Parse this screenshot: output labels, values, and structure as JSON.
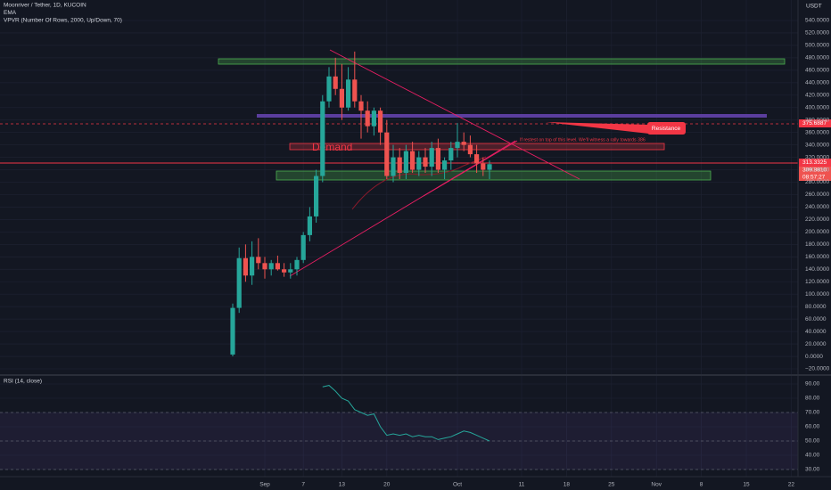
{
  "header": {
    "title": "Moonriver / Tether, 1D, KUCOIN",
    "ema": "EMA",
    "vpvr": "VPVR (Number Of Rows, 2000, Up/Down, 70)",
    "currency": "USDT"
  },
  "chart_data": [
    {
      "type": "candlestick",
      "up_color": "#26a69a",
      "down_color": "#ef5350",
      "categories": [
        null,
        null,
        null,
        null,
        null,
        "Sep",
        null,
        null,
        null,
        null,
        null,
        "7",
        null,
        null,
        null,
        null,
        null,
        "13",
        null,
        null,
        null,
        null,
        null,
        null,
        "20",
        null,
        null,
        null,
        null,
        null,
        null,
        null,
        null,
        null,
        null,
        "Oct",
        null,
        null,
        null,
        null,
        null,
        null,
        null,
        null,
        null,
        "11",
        null,
        null,
        null,
        null,
        null,
        null,
        "18",
        null,
        null,
        null,
        null,
        null,
        null,
        "25",
        null,
        null,
        null,
        null,
        null,
        null,
        "Nov",
        null,
        null,
        null,
        null,
        null,
        null,
        "8",
        null,
        null,
        null,
        null,
        null,
        null,
        "15",
        null,
        null,
        null,
        null,
        null,
        null,
        "22"
      ],
      "open": [
        3,
        78,
        158,
        130,
        160,
        150,
        140,
        150,
        140,
        135,
        140,
        155,
        195,
        225,
        290,
        410,
        450,
        430,
        400,
        445,
        410,
        395,
        370,
        395,
        360,
        290,
        320,
        295,
        330,
        300,
        320,
        305,
        335,
        300,
        315,
        335,
        345,
        340,
        325,
        310,
        300,
        null,
        null,
        null,
        null,
        null,
        null,
        null,
        null,
        null,
        null,
        null,
        null,
        null,
        null,
        null,
        null,
        null,
        null,
        null,
        null,
        null,
        null,
        null,
        null,
        null,
        null,
        null,
        null,
        null,
        null,
        null,
        null,
        null,
        null,
        null,
        null,
        null,
        null,
        null,
        null,
        null,
        null,
        null,
        null,
        null,
        null,
        null
      ],
      "high": [
        85,
        175,
        180,
        185,
        190,
        160,
        155,
        162,
        150,
        150,
        160,
        200,
        240,
        300,
        420,
        465,
        480,
        470,
        465,
        490,
        420,
        410,
        400,
        400,
        380,
        340,
        335,
        340,
        345,
        330,
        335,
        345,
        350,
        320,
        345,
        375,
        360,
        355,
        340,
        320,
        315,
        null,
        null,
        null,
        null,
        null,
        null,
        null,
        null,
        null,
        null,
        null,
        null,
        null,
        null,
        null,
        null,
        null,
        null,
        null,
        null,
        null,
        null,
        null,
        null,
        null,
        null,
        null,
        null,
        null,
        null,
        null,
        null,
        null,
        null,
        null,
        null,
        null,
        null,
        null,
        null,
        null,
        null,
        null,
        null,
        null,
        null,
        null
      ],
      "low": [
        0,
        70,
        120,
        115,
        140,
        125,
        130,
        138,
        128,
        125,
        130,
        150,
        185,
        215,
        280,
        400,
        420,
        380,
        395,
        400,
        350,
        360,
        355,
        340,
        285,
        280,
        285,
        285,
        295,
        290,
        295,
        290,
        295,
        285,
        300,
        320,
        330,
        320,
        295,
        290,
        285,
        null,
        null,
        null,
        null,
        null,
        null,
        null,
        null,
        null,
        null,
        null,
        null,
        null,
        null,
        null,
        null,
        null,
        null,
        null,
        null,
        null,
        null,
        null,
        null,
        null,
        null,
        null,
        null,
        null,
        null,
        null,
        null,
        null,
        null,
        null,
        null,
        null,
        null,
        null,
        null,
        null,
        null,
        null,
        null,
        null,
        null,
        null
      ],
      "close": [
        78,
        158,
        130,
        160,
        150,
        140,
        150,
        140,
        135,
        140,
        155,
        195,
        225,
        290,
        410,
        450,
        430,
        400,
        445,
        410,
        395,
        370,
        395,
        360,
        290,
        320,
        295,
        330,
        300,
        320,
        305,
        335,
        300,
        315,
        335,
        345,
        340,
        325,
        310,
        300,
        309,
        null,
        null,
        null,
        null,
        null,
        null,
        null,
        null,
        null,
        null,
        null,
        null,
        null,
        null,
        null,
        null,
        null,
        null,
        null,
        null,
        null,
        null,
        null,
        null,
        null,
        null,
        null,
        null,
        null,
        null,
        null,
        null,
        null,
        null,
        null,
        null,
        null,
        null,
        null,
        null,
        null,
        null,
        null,
        null,
        null,
        null,
        null
      ],
      "ylim": [
        -30,
        560
      ],
      "yticks": [
        {
          "value": -20,
          "label": "−20.0000"
        },
        {
          "value": 0,
          "label": "0.0000"
        },
        {
          "value": 20,
          "label": "20.0000"
        },
        {
          "value": 40,
          "label": "40.0000"
        },
        {
          "value": 60,
          "label": "60.0000"
        },
        {
          "value": 80,
          "label": "80.0000"
        },
        {
          "value": 100,
          "label": "100.0000"
        },
        {
          "value": 120,
          "label": "120.0000"
        },
        {
          "value": 140,
          "label": "140.0000"
        },
        {
          "value": 160,
          "label": "160.0000"
        },
        {
          "value": 180,
          "label": "180.0000"
        },
        {
          "value": 200,
          "label": "200.0000"
        },
        {
          "value": 220,
          "label": "220.0000"
        },
        {
          "value": 240,
          "label": "240.0000"
        },
        {
          "value": 260,
          "label": "260.0000"
        },
        {
          "value": 280,
          "label": "280.0000"
        },
        {
          "value": 300,
          "label": "300.0000"
        },
        {
          "value": 320,
          "label": "320.0000"
        },
        {
          "value": 340,
          "label": "340.0000"
        },
        {
          "value": 360,
          "label": "360.0000"
        },
        {
          "value": 380,
          "label": "380.0000"
        },
        {
          "value": 400,
          "label": "400.0000"
        },
        {
          "value": 420,
          "label": "420.0000"
        },
        {
          "value": 440,
          "label": "440.0000"
        },
        {
          "value": 460,
          "label": "460.0000"
        },
        {
          "value": 480,
          "label": "480.0000"
        },
        {
          "value": 500,
          "label": "500.0000"
        },
        {
          "value": 520,
          "label": "520.0000"
        },
        {
          "value": 540,
          "label": "540.0000"
        }
      ],
      "grid": true,
      "annotations": {
        "demand": "Demand",
        "resistance": "Resistance",
        "note": "If restest on top of this level. We'll witness a rally towards 386"
      },
      "price_tags": {
        "resistance": "375.6887",
        "line": "313.3325",
        "last": "309.8810",
        "countdown": "08:57:27"
      }
    },
    {
      "type": "line",
      "title": "RSI (14, close)",
      "color": "#26a69a",
      "values": [
        null,
        null,
        null,
        null,
        null,
        null,
        null,
        null,
        null,
        null,
        null,
        null,
        null,
        null,
        88,
        89,
        85,
        80,
        78,
        72,
        70,
        68,
        69,
        60,
        54,
        55,
        54,
        55,
        53,
        54,
        53,
        53,
        51,
        52,
        53,
        55,
        57,
        56,
        54,
        52,
        50,
        null,
        null,
        null,
        null,
        null,
        null,
        null,
        null,
        null,
        null,
        null,
        null,
        null,
        null,
        null,
        null,
        null,
        null,
        null,
        null,
        null,
        null,
        null,
        null,
        null,
        null,
        null,
        null,
        null,
        null,
        null,
        null,
        null,
        null,
        null,
        null,
        null,
        null,
        null,
        null,
        null,
        null,
        null,
        null,
        null,
        null,
        null
      ],
      "ylim": [
        25,
        95
      ],
      "yticks": [
        {
          "value": 30,
          "label": "30.00"
        },
        {
          "value": 40,
          "label": "40.00"
        },
        {
          "value": 50,
          "label": "50.00"
        },
        {
          "value": 60,
          "label": "60.00"
        },
        {
          "value": 70,
          "label": "70.00"
        },
        {
          "value": 80,
          "label": "80.00"
        },
        {
          "value": 90,
          "label": "90.00"
        }
      ],
      "levels": [
        70,
        50,
        30
      ]
    }
  ]
}
